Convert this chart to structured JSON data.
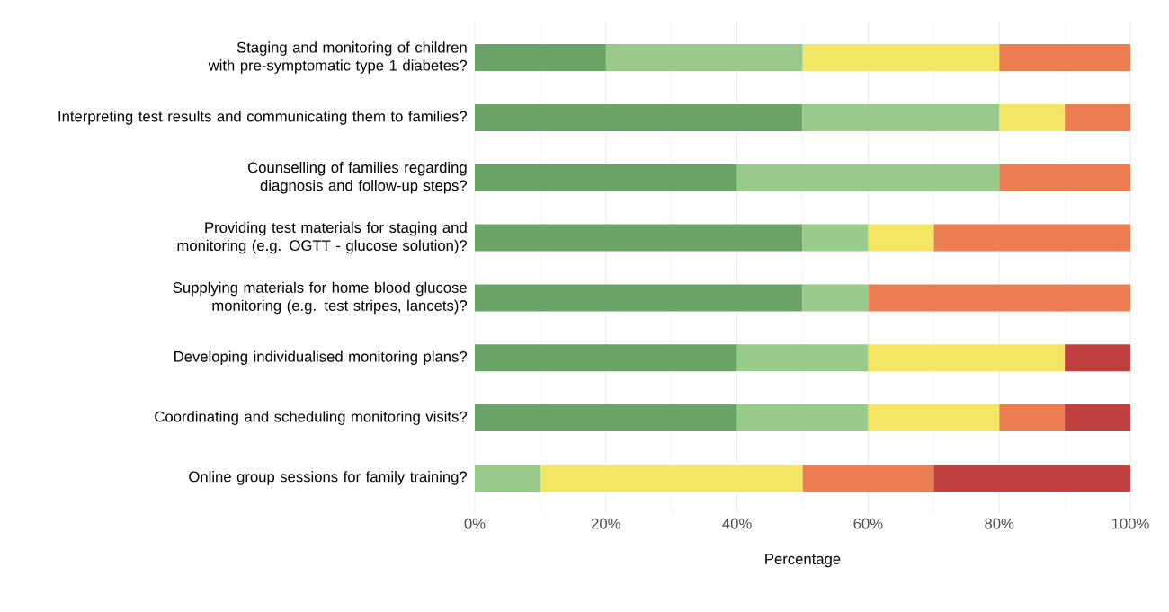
{
  "chart_data": {
    "type": "bar",
    "orientation": "horizontal",
    "stacked": true,
    "grid": true,
    "xlabel": "Percentage",
    "categories": [
      "Staging and monitoring of children with pre-symptomatic type 1 diabetes?",
      "Interpreting test results and communicating them to families?",
      "Counselling of families regarding diagnosis and follow-up steps?",
      "Providing test materials for staging and monitoring (e.g. OGTT - glucose solution)?",
      "Supplying materials for home blood glucose monitoring (e.g. test stripes, lancets)?",
      "Developing individualised monitoring plans?",
      "Coordinating and scheduling monitoring visits?",
      "Online group sessions for family training?"
    ],
    "series": [
      {
        "color": "#6aa466",
        "values": [
          20,
          50,
          40,
          50,
          50,
          40,
          40,
          0
        ]
      },
      {
        "color": "#99c98b",
        "values": [
          30,
          30,
          40,
          10,
          10,
          20,
          20,
          10
        ]
      },
      {
        "color": "#f2e664",
        "values": [
          30,
          10,
          0,
          10,
          0,
          30,
          20,
          40
        ]
      },
      {
        "color": "#ec7c52",
        "values": [
          20,
          10,
          20,
          30,
          40,
          0,
          10,
          20
        ]
      },
      {
        "color": "#c03f3f",
        "values": [
          0,
          0,
          0,
          0,
          0,
          10,
          10,
          30
        ]
      }
    ],
    "xlim": [
      0,
      100
    ],
    "xticks": [
      {
        "value": 0,
        "label": "0%"
      },
      {
        "value": 20,
        "label": "20%"
      },
      {
        "value": 40,
        "label": "40%"
      },
      {
        "value": 60,
        "label": "60%"
      },
      {
        "value": 80,
        "label": "80%"
      },
      {
        "value": 100,
        "label": "100%"
      }
    ]
  }
}
